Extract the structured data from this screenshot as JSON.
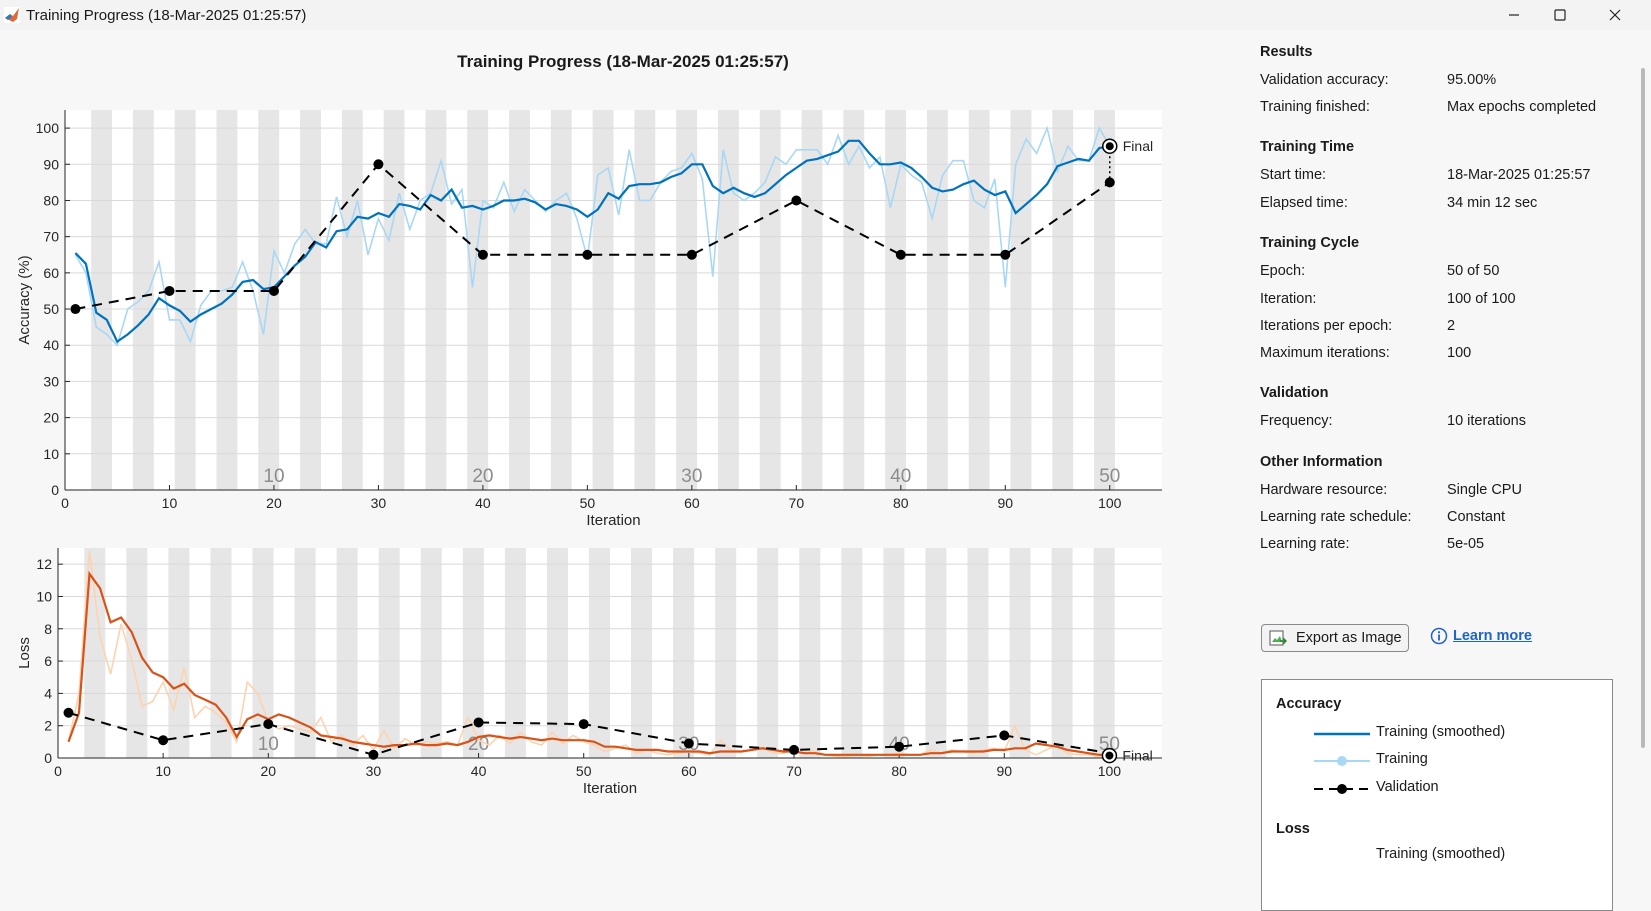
{
  "window": {
    "title": "Training Progress (18-Mar-2025 01:25:57)",
    "icons": [
      "matlab-icon",
      "minimize-icon",
      "maximize-icon",
      "close-icon"
    ]
  },
  "plot_title": "Training Progress (18-Mar-2025 01:25:57)",
  "final_label": "Final",
  "panel": {
    "results": {
      "heading": "Results",
      "rows": [
        {
          "label": "Validation accuracy:",
          "value": "95.00%"
        },
        {
          "label": "Training finished:",
          "value": "Max epochs completed"
        }
      ]
    },
    "training_time": {
      "heading": "Training Time",
      "rows": [
        {
          "label": "Start time:",
          "value": "18-Mar-2025 01:25:57"
        },
        {
          "label": "Elapsed time:",
          "value": "34 min 12 sec"
        }
      ]
    },
    "training_cycle": {
      "heading": "Training Cycle",
      "rows": [
        {
          "label": "Epoch:",
          "value": "50 of 50"
        },
        {
          "label": "Iteration:",
          "value": "100 of 100"
        },
        {
          "label": "Iterations per epoch:",
          "value": "2"
        },
        {
          "label": "Maximum iterations:",
          "value": "100"
        }
      ]
    },
    "validation": {
      "heading": "Validation",
      "rows": [
        {
          "label": "Frequency:",
          "value": "10 iterations"
        }
      ]
    },
    "other": {
      "heading": "Other Information",
      "rows": [
        {
          "label": "Hardware resource:",
          "value": "Single CPU"
        },
        {
          "label": "Learning rate schedule:",
          "value": "Constant"
        },
        {
          "label": "Learning rate:",
          "value": "5e-05"
        }
      ]
    },
    "export_label": "Export as Image",
    "learn_more_label": "Learn more",
    "legend": {
      "accuracy_heading": "Accuracy",
      "loss_heading": "Loss",
      "items": [
        {
          "label": "Training (smoothed)",
          "color": "#0072bd"
        },
        {
          "label": "Training",
          "color": "#a8d8f5"
        },
        {
          "label": "Validation",
          "color": "#000000"
        }
      ],
      "loss_partial_label": "Training (smoothed)"
    }
  },
  "chart_data": [
    {
      "type": "line",
      "title": "Training Progress (18-Mar-2025 01:25:57)",
      "xlabel": "Iteration",
      "ylabel": "Accuracy (%)",
      "xlim": [
        0,
        105
      ],
      "ylim": [
        0,
        105
      ],
      "xticks": [
        0,
        10,
        20,
        30,
        40,
        50,
        60,
        70,
        80,
        90,
        100
      ],
      "yticks": [
        0,
        10,
        20,
        30,
        40,
        50,
        60,
        70,
        80,
        90,
        100
      ],
      "epoch_labels": [
        10,
        20,
        30,
        40,
        50
      ],
      "series": [
        {
          "name": "Training (smoothed)",
          "color": "#0072bd",
          "x": [
            1,
            2,
            3,
            4,
            5,
            6,
            7,
            8,
            9,
            10,
            11,
            12,
            13,
            14,
            15,
            16,
            17,
            18,
            19,
            20,
            21,
            22,
            23,
            24,
            25,
            26,
            27,
            28,
            29,
            30,
            31,
            32,
            33,
            34,
            35,
            36,
            37,
            38,
            39,
            40,
            41,
            42,
            43,
            44,
            45,
            46,
            47,
            48,
            49,
            50,
            51,
            52,
            53,
            54,
            55,
            56,
            57,
            58,
            59,
            60,
            61,
            62,
            63,
            64,
            65,
            66,
            67,
            68,
            69,
            70,
            71,
            72,
            73,
            74,
            75,
            76,
            77,
            78,
            79,
            80,
            81,
            82,
            83,
            84,
            85,
            86,
            87,
            88,
            89,
            90,
            91,
            92,
            93,
            94,
            95,
            96,
            97,
            98,
            99,
            100
          ],
          "y": [
            65.5,
            62.5,
            49,
            47,
            41,
            43,
            45.5,
            48.5,
            53,
            51,
            49.5,
            46.5,
            48.5,
            50,
            51.5,
            54,
            57.5,
            58,
            55.5,
            56,
            59,
            62,
            64.5,
            68.5,
            67,
            71.5,
            72,
            75.5,
            75,
            76.5,
            75.5,
            79,
            78.5,
            77.5,
            81.5,
            80,
            83,
            78,
            78.5,
            77.5,
            78.5,
            80,
            80,
            80.5,
            79.5,
            77.5,
            79,
            78.5,
            77.5,
            75.5,
            77.5,
            82,
            80.5,
            84,
            84.5,
            84.5,
            85,
            86.5,
            87.5,
            90,
            90,
            84,
            82,
            83.5,
            82,
            81,
            82,
            84.5,
            87,
            89,
            91,
            91.5,
            92.5,
            93.5,
            96.5,
            96.5,
            93,
            90,
            90,
            90.5,
            89,
            86.5,
            83.5,
            82.5,
            83,
            84.5,
            85.5,
            83,
            81.5,
            82.5,
            76.5,
            79,
            81.5,
            84.5,
            89.5,
            90.5,
            91.5,
            91,
            94.5,
            95
          ]
        },
        {
          "name": "Training",
          "color": "#a8d8f5",
          "x": [
            1,
            2,
            3,
            4,
            5,
            6,
            7,
            8,
            9,
            10,
            11,
            12,
            13,
            14,
            15,
            16,
            17,
            18,
            19,
            20,
            21,
            22,
            23,
            24,
            25,
            26,
            27,
            28,
            29,
            30,
            31,
            32,
            33,
            34,
            35,
            36,
            37,
            38,
            39,
            40,
            41,
            42,
            43,
            44,
            45,
            46,
            47,
            48,
            49,
            50,
            51,
            52,
            53,
            54,
            55,
            56,
            57,
            58,
            59,
            60,
            61,
            62,
            63,
            64,
            65,
            66,
            67,
            68,
            69,
            70,
            71,
            72,
            73,
            74,
            75,
            76,
            77,
            78,
            79,
            80,
            81,
            82,
            83,
            84,
            85,
            86,
            87,
            88,
            89,
            90,
            91,
            92,
            93,
            94,
            95,
            96,
            97,
            98,
            99,
            100
          ],
          "y": [
            65,
            60,
            45,
            43,
            40,
            50,
            52,
            55,
            63,
            47,
            47,
            41,
            51,
            55,
            55,
            56,
            63,
            55,
            43,
            66,
            60,
            68,
            72,
            68,
            68,
            81,
            70,
            80,
            65,
            75,
            69,
            82,
            72,
            80,
            82,
            91,
            79,
            83,
            56,
            80,
            78,
            85,
            77,
            83,
            80,
            77,
            80,
            82,
            75,
            64,
            87,
            89,
            76,
            94,
            80,
            80,
            85,
            88,
            89,
            93,
            86,
            59,
            94,
            82,
            80,
            82,
            85,
            92,
            90,
            94,
            94,
            94,
            90,
            98,
            90,
            95,
            89,
            92,
            78,
            90,
            87,
            85,
            75,
            87,
            91,
            91,
            80,
            78,
            86,
            56,
            90,
            97,
            93,
            100,
            88,
            95,
            91,
            91,
            100,
            95
          ]
        },
        {
          "name": "Validation",
          "color": "#000000",
          "x": [
            1,
            10,
            20,
            30,
            40,
            50,
            60,
            70,
            80,
            90,
            100
          ],
          "y": [
            50,
            55,
            55,
            90,
            65,
            65,
            65,
            80,
            65,
            65,
            85
          ]
        }
      ],
      "final_point": {
        "x": 100,
        "y": 95
      }
    },
    {
      "type": "line",
      "xlabel": "Iteration",
      "ylabel": "Loss",
      "xlim": [
        0,
        105
      ],
      "ylim": [
        0,
        13
      ],
      "xticks": [
        0,
        10,
        20,
        30,
        40,
        50,
        60,
        70,
        80,
        90,
        100
      ],
      "yticks": [
        0,
        2,
        4,
        6,
        8,
        10,
        12
      ],
      "epoch_labels": [
        10,
        20,
        30,
        40,
        50
      ],
      "series": [
        {
          "name": "Training (smoothed)",
          "color": "#d95319",
          "x": [
            1,
            2,
            3,
            4,
            5,
            6,
            7,
            8,
            9,
            10,
            11,
            12,
            13,
            14,
            15,
            16,
            17,
            18,
            19,
            20,
            21,
            22,
            23,
            24,
            25,
            26,
            27,
            28,
            29,
            30,
            31,
            32,
            33,
            34,
            35,
            36,
            37,
            38,
            39,
            40,
            41,
            42,
            43,
            44,
            45,
            46,
            47,
            48,
            49,
            50,
            51,
            52,
            53,
            54,
            55,
            56,
            57,
            58,
            59,
            60,
            61,
            62,
            63,
            64,
            65,
            66,
            67,
            68,
            69,
            70,
            71,
            72,
            73,
            74,
            75,
            76,
            77,
            78,
            79,
            80,
            81,
            82,
            83,
            84,
            85,
            86,
            87,
            88,
            89,
            90,
            91,
            92,
            93,
            94,
            95,
            96,
            97,
            98,
            99,
            100
          ],
          "y": [
            1,
            2.8,
            11.4,
            10.5,
            8.4,
            8.7,
            7.8,
            6.2,
            5.3,
            5,
            4.3,
            4.6,
            3.9,
            3.6,
            3.3,
            2.5,
            1.3,
            2.4,
            2.7,
            2.4,
            2.7,
            2.5,
            2.2,
            1.9,
            1.4,
            1.3,
            1.2,
            1,
            0.9,
            0.8,
            0.7,
            0.8,
            0.8,
            0.9,
            0.8,
            0.8,
            0.9,
            0.8,
            1,
            1.3,
            1.4,
            1.3,
            1.2,
            1.3,
            1.2,
            1.1,
            1.2,
            1.1,
            1.1,
            1.1,
            1,
            0.7,
            0.7,
            0.6,
            0.5,
            0.5,
            0.5,
            0.4,
            0.4,
            0.4,
            0.4,
            0.3,
            0.4,
            0.4,
            0.4,
            0.5,
            0.6,
            0.5,
            0.4,
            0.4,
            0.3,
            0.3,
            0.2,
            0.2,
            0.2,
            0.2,
            0.2,
            0.2,
            0.2,
            0.2,
            0.2,
            0.2,
            0.3,
            0.3,
            0.4,
            0.4,
            0.4,
            0.4,
            0.5,
            0.5,
            0.6,
            0.6,
            0.9,
            0.8,
            0.7,
            0.5,
            0.4,
            0.3,
            0.2,
            0.2
          ]
        },
        {
          "name": "Training",
          "color": "#fdd3b0",
          "x": [
            1,
            2,
            3,
            4,
            5,
            6,
            7,
            8,
            9,
            10,
            11,
            12,
            13,
            14,
            15,
            16,
            17,
            18,
            19,
            20,
            21,
            22,
            23,
            24,
            25,
            26,
            27,
            28,
            29,
            30,
            31,
            32,
            33,
            34,
            35,
            36,
            37,
            38,
            39,
            40,
            41,
            42,
            43,
            44,
            45,
            46,
            47,
            48,
            49,
            50,
            51,
            52,
            53,
            54,
            55,
            56,
            57,
            58,
            59,
            60,
            61,
            62,
            63,
            64,
            65,
            66,
            67,
            68,
            69,
            70,
            71,
            72,
            73,
            74,
            75,
            76,
            77,
            78,
            79,
            80,
            81,
            82,
            83,
            84,
            85,
            86,
            87,
            88,
            89,
            90,
            91,
            92,
            93,
            94,
            95,
            96,
            97,
            98,
            99,
            100
          ],
          "y": [
            1,
            4,
            12.8,
            7.5,
            5.2,
            8.3,
            6.1,
            3.2,
            3.5,
            4.7,
            3,
            5.6,
            2.5,
            3.2,
            2.8,
            2.2,
            1,
            4.7,
            4,
            2.2,
            1.8,
            2,
            1.8,
            1.6,
            2.5,
            1,
            1.4,
            0.8,
            1.4,
            0.5,
            1.7,
            0.6,
            1.2,
            0.8,
            1,
            0.9,
            1,
            0.8,
            2.5,
            1.1,
            0.8,
            1.4,
            0.9,
            1.6,
            1,
            0.8,
            1.6,
            0.9,
            1.4,
            1,
            0.8,
            0.4,
            0.6,
            0.8,
            0.3,
            0.5,
            0.3,
            0.2,
            0.3,
            0.4,
            0.3,
            0.2,
            1.1,
            0.5,
            0.4,
            0.5,
            0.6,
            0.3,
            0.3,
            0.6,
            0.5,
            0.4,
            0.2,
            0.1,
            0.1,
            0.2,
            0.1,
            0.2,
            0.2,
            0.3,
            0.2,
            0.2,
            0.5,
            0.3,
            0.5,
            0.4,
            0.3,
            0.5,
            0.6,
            0.4,
            2,
            0.5,
            0.2,
            0.5,
            0.8,
            0.3,
            0.2,
            0.2,
            0.1,
            0.2
          ]
        },
        {
          "name": "Validation",
          "color": "#000000",
          "x": [
            1,
            10,
            20,
            30,
            40,
            50,
            60,
            70,
            80,
            90,
            100
          ],
          "y": [
            2.8,
            1.1,
            2.1,
            0.2,
            2.2,
            2.1,
            0.9,
            0.5,
            0.7,
            1.4,
            0.3
          ]
        }
      ],
      "final_point": {
        "x": 100,
        "y": 0.15
      }
    }
  ]
}
